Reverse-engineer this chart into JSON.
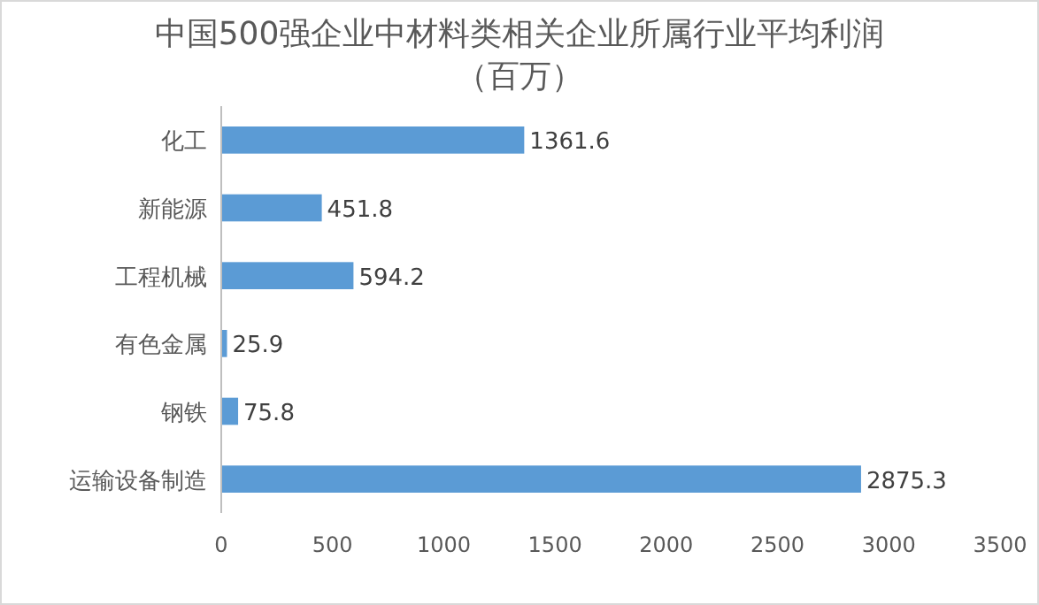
{
  "chart_data": {
    "type": "bar",
    "orientation": "horizontal",
    "title": "中国500强企业中材料类相关企业所属行业平均利润",
    "subtitle": "（百万）",
    "categories": [
      "化工",
      "新能源",
      "工程机械",
      "有色金属",
      "钢铁",
      "运输设备制造"
    ],
    "values": [
      1361.6,
      451.8,
      594.2,
      25.9,
      75.8,
      2875.3
    ],
    "color": "#5b9bd5",
    "xlim": [
      0,
      3500
    ],
    "xticks": [
      0,
      500,
      1000,
      1500,
      2000,
      2500,
      3000,
      3500
    ],
    "data_labels": true
  }
}
